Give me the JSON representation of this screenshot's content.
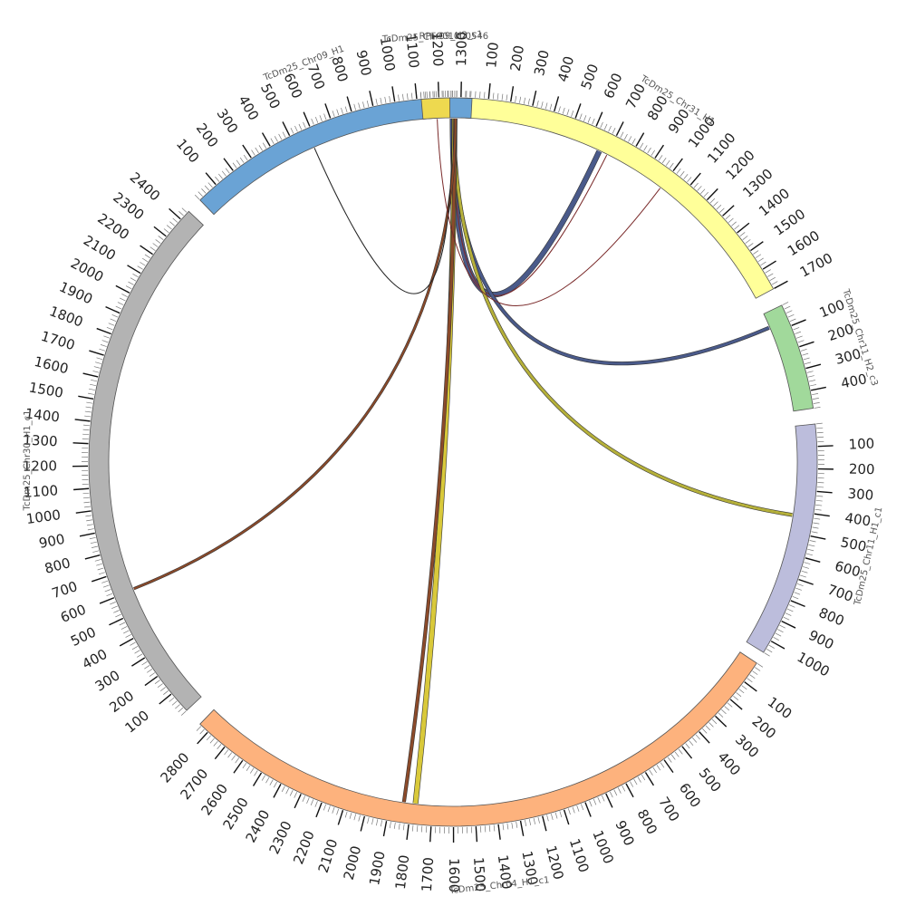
{
  "chart_data": {
    "type": "circos",
    "segments": [
      {
        "id": "top2",
        "name": "RPFC01000546",
        "color": "#a6cee3",
        "length": 60,
        "tick_step": 100,
        "tick_labels": false
      },
      {
        "id": "chr31",
        "name": "TcDm25_Chr31_H1",
        "color": "#ffff99",
        "length": 1700,
        "tick_step": 100,
        "tick_labels": true
      },
      {
        "id": "chr11h2",
        "name": "TcDm25_Chr11_H2_c3",
        "color": "#a1d99b",
        "length": 480,
        "tick_step": 100,
        "tick_labels": true
      },
      {
        "id": "chr11h1",
        "name": "TcDm25_Chr11_H1_c1",
        "color": "#bcbddc",
        "length": 1060,
        "tick_step": 100,
        "tick_labels": true
      },
      {
        "id": "chr04",
        "name": "TcDm25_Chr04_H1_c1",
        "color": "#fdb27d",
        "length": 2850,
        "tick_step": 100,
        "tick_labels": true
      },
      {
        "id": "chr30",
        "name": "TcDm25_Chr30_H1_c1",
        "color": "#b3b3b3",
        "length": 2450,
        "tick_step": 100,
        "tick_labels": true
      },
      {
        "id": "chr09",
        "name": "TcDm25_Chr09_H1",
        "color": "#6aa3d5",
        "length": 1350,
        "tick_step": 100,
        "tick_labels": true
      },
      {
        "id": "top1",
        "name": "TcDm25_Chr09_H2_c1",
        "color": "#eed94f",
        "length": 190,
        "tick_step": 100,
        "tick_labels": false
      }
    ],
    "links": [
      {
        "from": "top2",
        "from_pos": 20,
        "to": "chr31",
        "to_pos": 660,
        "color": "#4a5a8a",
        "width": 5
      },
      {
        "from": "top2",
        "from_pos": 25,
        "to": "chr31",
        "to_pos": 700,
        "color": "#7a2a2a",
        "width": 1
      },
      {
        "from": "top2",
        "from_pos": 30,
        "to": "chr11h2",
        "to_pos": 70,
        "color": "#4a5a8a",
        "width": 3
      },
      {
        "from": "top2",
        "from_pos": 35,
        "to": "chr11h1",
        "to_pos": 420,
        "color": "#b5b03a",
        "width": 3
      },
      {
        "from": "top2",
        "from_pos": 40,
        "to": "chr04",
        "to_pos": 1780,
        "color": "#d9c93a",
        "width": 5
      },
      {
        "from": "top2",
        "from_pos": 45,
        "to": "chr04",
        "to_pos": 1835,
        "color": "#8b4a2a",
        "width": 3
      },
      {
        "from": "top2",
        "from_pos": 50,
        "to": "chr30",
        "to_pos": 605,
        "color": "#8b4a2a",
        "width": 2
      },
      {
        "from": "top2",
        "from_pos": 15,
        "to": "chr09",
        "to_pos": 580,
        "color": "#222222",
        "width": 1
      },
      {
        "from": "top1",
        "from_pos": 100,
        "to": "chr31",
        "to_pos": 1000,
        "color": "#7a2a2a",
        "width": 1
      }
    ]
  }
}
